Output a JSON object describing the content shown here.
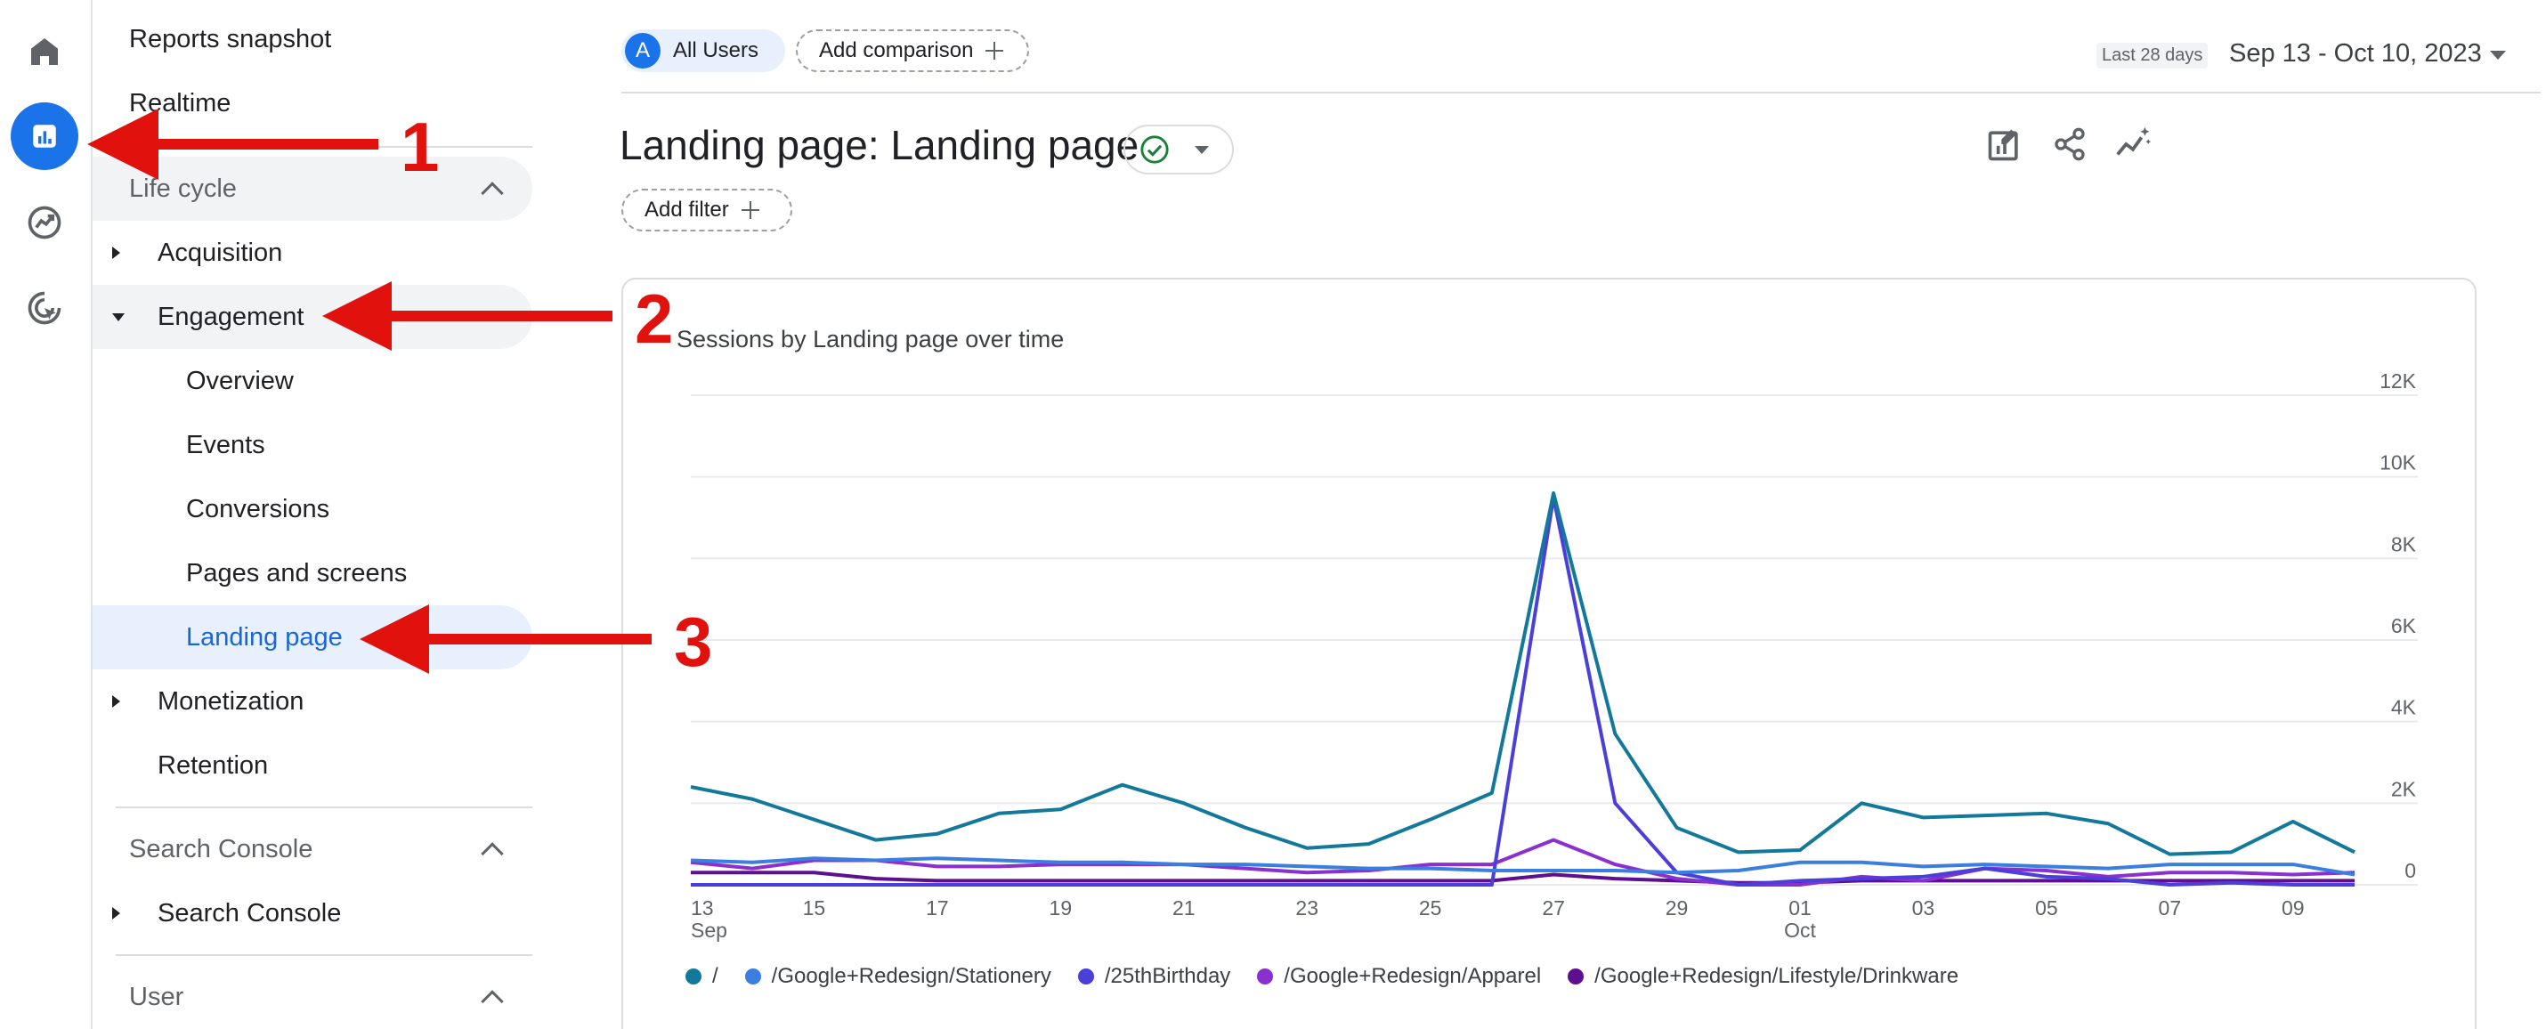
{
  "nav": {
    "reports_snapshot": "Reports snapshot",
    "realtime": "Realtime",
    "life_cycle": "Life cycle",
    "acquisition": "Acquisition",
    "engagement": "Engagement",
    "overview": "Overview",
    "events": "Events",
    "conversions": "Conversions",
    "pages_and_screens": "Pages and screens",
    "landing_page": "Landing page",
    "monetization": "Monetization",
    "retention": "Retention",
    "search_console_section": "Search Console",
    "search_console": "Search Console",
    "user_section": "User"
  },
  "header": {
    "all_users_avatar": "A",
    "all_users": "All Users",
    "add_comparison": "Add comparison",
    "date_badge": "Last 28 days",
    "date_range": "Sep 13 - Oct 10, 2023"
  },
  "page": {
    "title": "Landing page: Landing page",
    "add_filter": "Add filter"
  },
  "annotations": {
    "a1": "1",
    "a2": "2",
    "a3": "3"
  },
  "colors": {
    "accent": "#1a73e8",
    "selected_nav_bg": "#e8f0fe",
    "selected_nav_text": "#1967d2",
    "annotation_red": "#e1120e"
  },
  "chart_data": {
    "type": "line",
    "title": "Sessions by Landing page over time",
    "y_ticks": [
      "0",
      "2K",
      "4K",
      "6K",
      "8K",
      "10K",
      "12K"
    ],
    "ylim": [
      0,
      12000
    ],
    "x_tick_labels": [
      {
        "label": "13",
        "sub": "Sep",
        "i": 0
      },
      {
        "label": "15",
        "sub": "",
        "i": 2
      },
      {
        "label": "17",
        "sub": "",
        "i": 4
      },
      {
        "label": "19",
        "sub": "",
        "i": 6
      },
      {
        "label": "21",
        "sub": "",
        "i": 8
      },
      {
        "label": "23",
        "sub": "",
        "i": 10
      },
      {
        "label": "25",
        "sub": "",
        "i": 12
      },
      {
        "label": "27",
        "sub": "",
        "i": 14
      },
      {
        "label": "29",
        "sub": "",
        "i": 16
      },
      {
        "label": "01",
        "sub": "Oct",
        "i": 18
      },
      {
        "label": "03",
        "sub": "",
        "i": 20
      },
      {
        "label": "05",
        "sub": "",
        "i": 22
      },
      {
        "label": "07",
        "sub": "",
        "i": 24
      },
      {
        "label": "09",
        "sub": "",
        "i": 26
      }
    ],
    "x": [
      "Sep 13",
      "Sep 14",
      "Sep 15",
      "Sep 16",
      "Sep 17",
      "Sep 18",
      "Sep 19",
      "Sep 20",
      "Sep 21",
      "Sep 22",
      "Sep 23",
      "Sep 24",
      "Sep 25",
      "Sep 26",
      "Sep 27",
      "Sep 28",
      "Sep 29",
      "Sep 30",
      "Oct 01",
      "Oct 02",
      "Oct 03",
      "Oct 04",
      "Oct 05",
      "Oct 06",
      "Oct 07",
      "Oct 08",
      "Oct 09",
      "Oct 10"
    ],
    "grid": true,
    "legend_position": "bottom",
    "series": [
      {
        "name": "/",
        "color": "#12799b",
        "values": [
          2400,
          2100,
          1600,
          1100,
          1250,
          1750,
          1850,
          2450,
          2000,
          1400,
          900,
          1000,
          1600,
          2250,
          9600,
          3700,
          1400,
          800,
          850,
          2000,
          1650,
          1700,
          1750,
          1500,
          750,
          800,
          1550,
          800
        ]
      },
      {
        "name": "/Google+Redesign/Stationery",
        "color": "#3a7ee0",
        "values": [
          600,
          550,
          650,
          600,
          650,
          600,
          550,
          550,
          500,
          500,
          450,
          400,
          400,
          350,
          350,
          350,
          300,
          350,
          550,
          550,
          450,
          500,
          450,
          400,
          500,
          500,
          500,
          250
        ]
      },
      {
        "name": "/25thBirthday",
        "color": "#4a3fd8",
        "values": [
          0,
          0,
          0,
          0,
          0,
          0,
          0,
          0,
          0,
          0,
          0,
          0,
          0,
          0,
          9500,
          2000,
          300,
          0,
          100,
          150,
          200,
          400,
          200,
          150,
          0,
          50,
          0,
          0
        ]
      },
      {
        "name": "/Google+Redesign/Apparel",
        "color": "#8a2fd0",
        "values": [
          550,
          400,
          600,
          600,
          450,
          450,
          500,
          500,
          500,
          400,
          300,
          350,
          500,
          500,
          1100,
          500,
          150,
          0,
          0,
          200,
          100,
          400,
          350,
          200,
          300,
          300,
          250,
          300
        ]
      },
      {
        "name": "/Google+Redesign/Lifestyle/Drinkware",
        "color": "#5e0f8f",
        "values": [
          300,
          300,
          300,
          150,
          100,
          100,
          100,
          100,
          100,
          100,
          100,
          100,
          100,
          100,
          250,
          150,
          100,
          50,
          50,
          100,
          100,
          100,
          100,
          100,
          100,
          100,
          100,
          100
        ]
      }
    ]
  }
}
